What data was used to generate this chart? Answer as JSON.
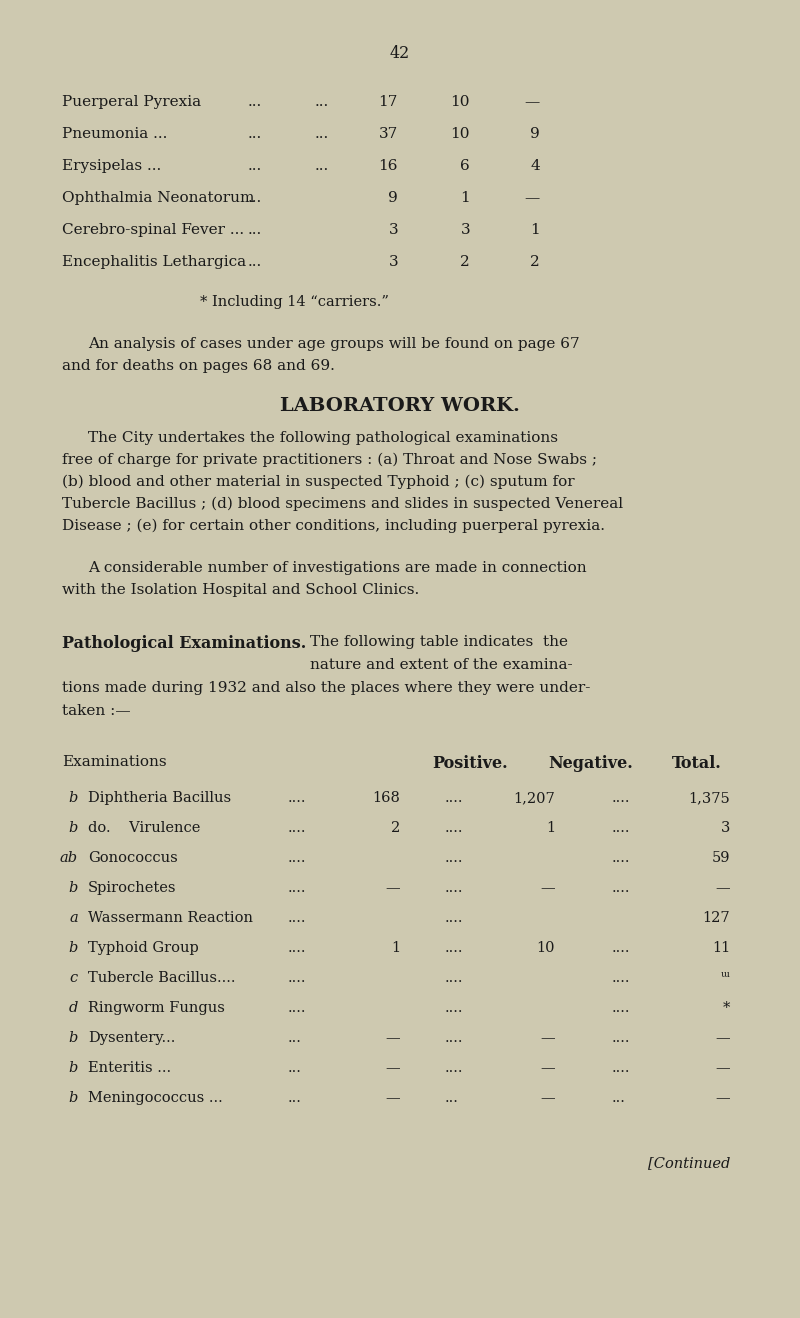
{
  "bg_color": "#cec9b0",
  "text_color": "#1a1a1a",
  "page_number": "42",
  "top_table": {
    "rows": [
      {
        "label": "Puerperal Pyrexia",
        "d1": "...",
        "d2": "...",
        "c1": "17",
        "c2": "10",
        "c3": "—"
      },
      {
        "label": "Pneumonia ...",
        "d1": "...",
        "d2": "...",
        "c1": "37",
        "c2": "10",
        "c3": "9"
      },
      {
        "label": "Erysipelas ...",
        "d1": "...",
        "d2": "...",
        "c1": "16",
        "c2": "6",
        "c3": "4"
      },
      {
        "label": "Ophthalmia Neonatorum",
        "d1": "...",
        "d2": "",
        "c1": "9",
        "c2": "1",
        "c3": "—"
      },
      {
        "label": "Cerebro-spinal Fever ...",
        "d1": "...",
        "d2": "",
        "c1": "3",
        "c2": "3",
        "c3": "1"
      },
      {
        "label": "Encephalitis Lethargica",
        "d1": "...",
        "d2": "",
        "c1": "3",
        "c2": "2",
        "c3": "2"
      }
    ],
    "footnote": "* Including 14 “carriers.”"
  },
  "para1_line1": "An analysis of cases under age groups will be found on page 67",
  "para1_line2": "and for deaths on pages 68 and 69.",
  "section_title": "LABORATORY WORK.",
  "para2_lines": [
    "The City undertakes the following pathological examinations",
    "free of charge for private practitioners : (a) Throat and Nose Swabs ;",
    "(b) blood and other material in suspected Typhoid ; (c) sputum for",
    "Tubercle Bacillus ; (d) blood specimens and slides in suspected Venereal",
    "Disease ; (e) for certain other conditions, including puerperal pyrexia."
  ],
  "para3_lines": [
    "A considerable number of investigations are made in connection",
    "with the Isolation Hospital and School Clinics."
  ],
  "path_bold": "Pathological Examinations.",
  "path_text_line1": "The following table indicates  the",
  "path_text_line2": "nature and extent of the examina-",
  "path_text_line3": "tions made during 1932 and also the places where they were under-",
  "path_text_line4": "taken :—",
  "lab_header": [
    "Examinations",
    "Positive.",
    "Negative.",
    "Total."
  ],
  "lab_rows": [
    {
      "ref": "b",
      "label": "Diphtheria Bacillus",
      "d1": "....",
      "pos": "168",
      "d2": "....",
      "neg": "1,207",
      "d3": "....",
      "tot": "1,375"
    },
    {
      "ref": "b",
      "label": "do.    Virulence",
      "d1": "....",
      "pos": "2",
      "d2": "....",
      "neg": "1",
      "d3": "....",
      "tot": "3"
    },
    {
      "ref": "ab",
      "label": "Gonococcus",
      "d1": "....",
      "pos": "",
      "d2": "....",
      "neg": "",
      "d3": "....",
      "tot": "59"
    },
    {
      "ref": "b",
      "label": "Spirochetes",
      "d1": "....",
      "pos": "—",
      "d2": "....",
      "neg": "—",
      "d3": "....",
      "tot": "—"
    },
    {
      "ref": "a",
      "label": "Wassermann Reaction",
      "d1": "....",
      "pos": "",
      "d2": "....",
      "neg": "",
      "d3": "",
      "tot": "127"
    },
    {
      "ref": "b",
      "label": "Typhoid Group",
      "d1": "....",
      "pos": "1",
      "d2": "....",
      "neg": "10",
      "d3": "....",
      "tot": "11"
    },
    {
      "ref": "c",
      "label": "Tubercle Bacillus....",
      "d1": "....",
      "pos": "",
      "d2": "....",
      "neg": "",
      "d3": "....",
      "tot": "ᵚ"
    },
    {
      "ref": "d",
      "label": "Ringworm Fungus",
      "d1": "....",
      "pos": "",
      "d2": "....",
      "neg": "",
      "d3": "....",
      "tot": "*"
    },
    {
      "ref": "b",
      "label": "Dysentery...",
      "d1": "...",
      "pos": "—",
      "d2": "....",
      "neg": "—",
      "d3": "....",
      "tot": "—"
    },
    {
      "ref": "b",
      "label": "Enteritis ...",
      "d1": "...",
      "pos": "—",
      "d2": "....",
      "neg": "—",
      "d3": "....",
      "tot": "—"
    },
    {
      "ref": "b",
      "label": "Meningococcus ...",
      "d1": "...",
      "pos": "—",
      "d2": "...",
      "neg": "—",
      "d3": "...",
      "tot": "—"
    }
  ],
  "continued": "[Continued"
}
